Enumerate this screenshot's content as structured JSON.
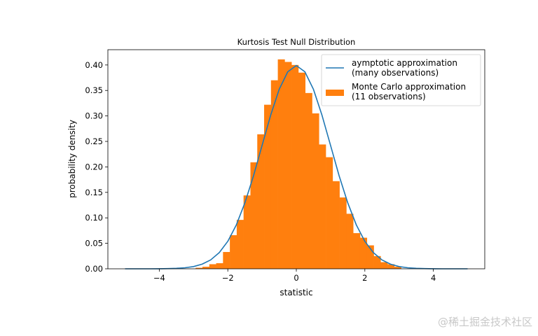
{
  "chart_data": {
    "type": "bar",
    "title": "Kurtosis Test Null Distribution",
    "xlabel": "statistic",
    "ylabel": "probability density",
    "xlim": [
      -5.5,
      5.5
    ],
    "ylim": [
      0,
      0.43
    ],
    "xticks": [
      "−4",
      "−2",
      "0",
      "2",
      "4"
    ],
    "xtick_values": [
      -4,
      -2,
      0,
      2,
      4
    ],
    "yticks": [
      "0.00",
      "0.05",
      "0.10",
      "0.15",
      "0.20",
      "0.25",
      "0.30",
      "0.35",
      "0.40"
    ],
    "ytick_values": [
      0,
      0.05,
      0.1,
      0.15,
      0.2,
      0.25,
      0.3,
      0.35,
      0.4
    ],
    "grid": false,
    "legend_position": "top-right",
    "series": [
      {
        "name": "aymptotic approximation\n(many observations)",
        "type": "line",
        "color": "#1f77b4",
        "x": [
          -5,
          -4.75,
          -4.5,
          -4.25,
          -4,
          -3.75,
          -3.5,
          -3.25,
          -3,
          -2.75,
          -2.5,
          -2.25,
          -2,
          -1.75,
          -1.5,
          -1.25,
          -1,
          -0.75,
          -0.5,
          -0.25,
          0,
          0.25,
          0.5,
          0.75,
          1,
          1.25,
          1.5,
          1.75,
          2,
          2.25,
          2.5,
          2.75,
          3,
          3.25,
          3.5,
          3.75,
          4,
          4.25,
          4.5,
          4.75,
          5
        ],
        "y": [
          0,
          0,
          0,
          0,
          0.0001,
          0.0004,
          0.0009,
          0.002,
          0.0044,
          0.0091,
          0.0175,
          0.0317,
          0.054,
          0.0863,
          0.1295,
          0.1826,
          0.242,
          0.3011,
          0.3521,
          0.3867,
          0.3989,
          0.3867,
          0.3521,
          0.3011,
          0.242,
          0.1826,
          0.1295,
          0.0863,
          0.054,
          0.0317,
          0.0175,
          0.0091,
          0.0044,
          0.002,
          0.0009,
          0.0004,
          0.0001,
          0,
          0,
          0,
          0
        ]
      },
      {
        "name": "Monte Carlo approximation\n(11 observations)",
        "type": "histogram",
        "color": "#ff7f0e",
        "bin_width": 0.2,
        "bin_left_edges": [
          -2.94,
          -2.74,
          -2.54,
          -2.34,
          -2.14,
          -1.94,
          -1.74,
          -1.54,
          -1.34,
          -1.14,
          -0.94,
          -0.74,
          -0.54,
          -0.34,
          -0.14,
          0.06,
          0.26,
          0.46,
          0.66,
          0.86,
          1.06,
          1.26,
          1.46,
          1.66,
          1.86,
          2.06,
          2.26,
          2.46,
          2.66,
          2.86
        ],
        "values": [
          0.002,
          0.004,
          0.009,
          0.011,
          0.033,
          0.066,
          0.096,
          0.144,
          0.209,
          0.264,
          0.322,
          0.37,
          0.411,
          0.406,
          0.4,
          0.385,
          0.345,
          0.305,
          0.244,
          0.219,
          0.172,
          0.14,
          0.108,
          0.07,
          0.061,
          0.046,
          0.025,
          0.013,
          0.009,
          0.004
        ]
      }
    ],
    "legend": {
      "line_label_1": "aymptotic approximation",
      "line_label_2": "(many observations)",
      "hist_label_1": "Monte Carlo approximation",
      "hist_label_2": "(11 observations)"
    }
  },
  "watermark": "@稀土掘金技术社区"
}
